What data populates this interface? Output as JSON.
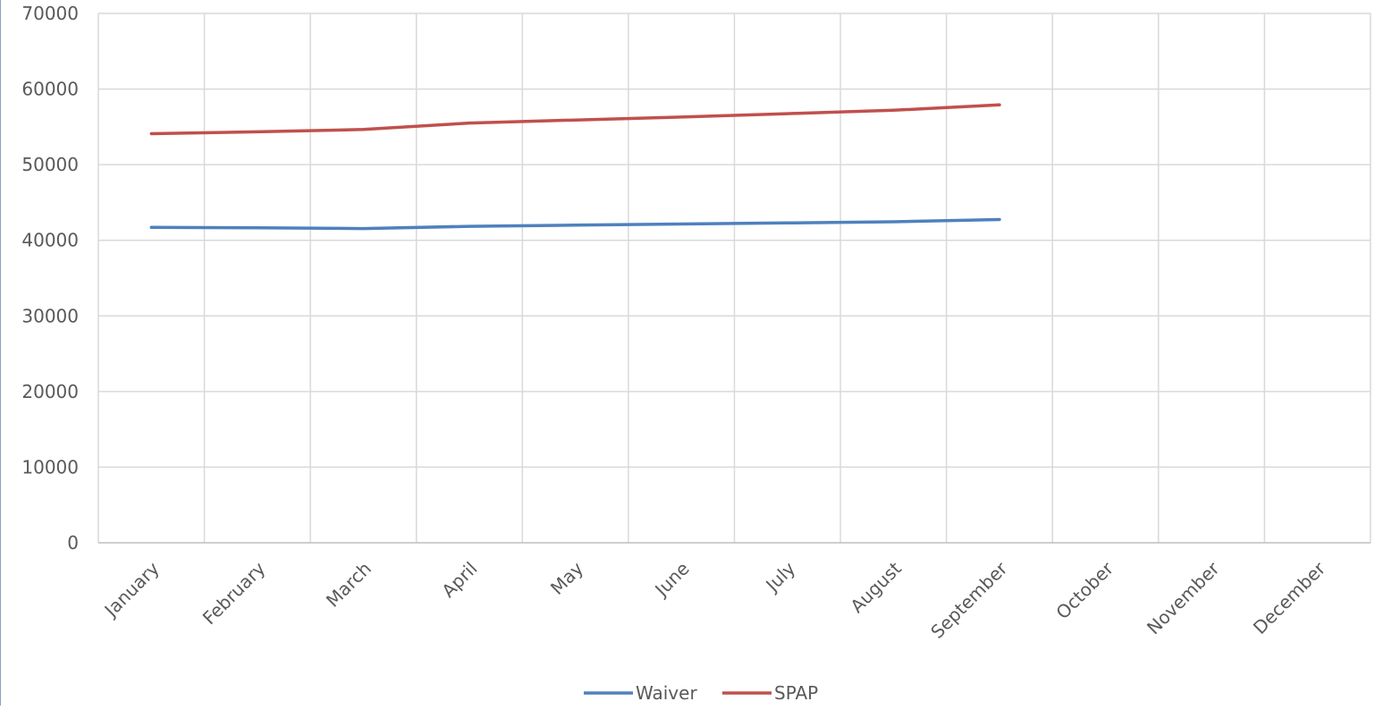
{
  "chart_data": {
    "type": "line",
    "categories": [
      "January",
      "February",
      "March",
      "April",
      "May",
      "June",
      "July",
      "August",
      "September",
      "October",
      "November",
      "December"
    ],
    "series": [
      {
        "name": "Waiver",
        "color": "#4f81bd",
        "values": [
          41700,
          41650,
          41550,
          41850,
          42000,
          42150,
          42300,
          42450,
          42750,
          null,
          null,
          null
        ]
      },
      {
        "name": "SPAP",
        "color": "#c0504d",
        "values": [
          54100,
          54350,
          54650,
          55500,
          55900,
          56300,
          56750,
          57200,
          57900,
          null,
          null,
          null
        ]
      }
    ],
    "ylim": [
      0,
      70000
    ],
    "yticks": [
      "0",
      "10000",
      "20000",
      "30000",
      "40000",
      "50000",
      "60000",
      "70000"
    ],
    "grid": true,
    "legend_position": "bottom",
    "colors": {
      "grid": "#d9d9d9",
      "axis": "#bfbfbf",
      "text": "#595959"
    }
  }
}
